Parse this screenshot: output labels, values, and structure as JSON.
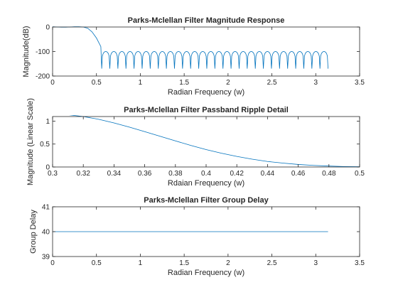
{
  "chart_data": [
    {
      "type": "line",
      "title": "Parks-Mclellan Filter Magnitude Response",
      "xlabel": "Radian Frequency (w)",
      "ylabel": "Magnitude(dB)",
      "xlim": [
        0,
        3.5
      ],
      "ylim": [
        -200,
        0
      ],
      "xticks": [
        0,
        0.5,
        1,
        1.5,
        2,
        2.5,
        3,
        3.5
      ],
      "yticks": [
        -200,
        -100,
        0
      ],
      "xtick_labels": [
        "0",
        "0.5",
        "1",
        "1.5",
        "2",
        "2.5",
        "3",
        "3.5"
      ],
      "ytick_labels": [
        "-200",
        "-100",
        "0"
      ],
      "series": [
        {
          "color": "#0072bd",
          "passband": {
            "x": [
              0,
              0.05,
              0.1,
              0.15,
              0.2,
              0.25,
              0.3,
              0.35,
              0.4,
              0.45,
              0.5,
              0.55
            ],
            "y": [
              1,
              0,
              -0.5,
              -0.5,
              0,
              1,
              1.2,
              0,
              -5,
              -20,
              -45,
              -80
            ]
          },
          "stopband": {
            "start": 0.56,
            "end": 3.14,
            "lobes": 28,
            "ripple_level": -100,
            "null_depth": -170
          }
        }
      ],
      "grid": false
    },
    {
      "type": "line",
      "title": "Parks-Mclellan Filter Passband Ripple Detail",
      "xlabel": "Rdaian Frequency (w)",
      "ylabel": "Magnitude (Linear Scale)",
      "xlim": [
        0.3,
        0.5
      ],
      "ylim": [
        0,
        1.1
      ],
      "xticks": [
        0.3,
        0.32,
        0.34,
        0.36,
        0.38,
        0.4,
        0.42,
        0.44,
        0.46,
        0.48,
        0.5
      ],
      "yticks": [
        0,
        0.5,
        1
      ],
      "xtick_labels": [
        "0.3",
        "0.32",
        "0.34",
        "0.36",
        "0.38",
        "0.4",
        "0.42",
        "0.44",
        "0.46",
        "0.48",
        "0.5"
      ],
      "ytick_labels": [
        "0",
        "0.5",
        "1"
      ],
      "series": [
        {
          "color": "#0072bd",
          "x": [
            0.3,
            0.31,
            0.32,
            0.33,
            0.34,
            0.35,
            0.36,
            0.37,
            0.38,
            0.39,
            0.4,
            0.41,
            0.42,
            0.43,
            0.44,
            0.45,
            0.46,
            0.47,
            0.48,
            0.49,
            0.5
          ],
          "y": [
            1.15,
            1.14,
            1.1,
            1.04,
            0.96,
            0.87,
            0.77,
            0.67,
            0.57,
            0.47,
            0.38,
            0.3,
            0.23,
            0.17,
            0.12,
            0.085,
            0.055,
            0.035,
            0.02,
            0.01,
            0.005
          ]
        }
      ],
      "grid": false
    },
    {
      "type": "line",
      "title": "Parks-Mclellan Filter Group Delay",
      "xlabel": "Radian Frequency (w)",
      "ylabel": "Group Delay",
      "xlim": [
        0,
        3.5
      ],
      "ylim": [
        39,
        41
      ],
      "xticks": [
        0,
        0.5,
        1,
        1.5,
        2,
        2.5,
        3,
        3.5
      ],
      "yticks": [
        39,
        40,
        41
      ],
      "xtick_labels": [
        "0",
        "0.5",
        "1",
        "1.5",
        "2",
        "2.5",
        "3",
        "3.5"
      ],
      "ytick_labels": [
        "39",
        "40",
        "41"
      ],
      "series": [
        {
          "color": "#0072bd",
          "x": [
            0,
            3.14
          ],
          "y": [
            40,
            40
          ]
        }
      ],
      "grid": false
    }
  ]
}
